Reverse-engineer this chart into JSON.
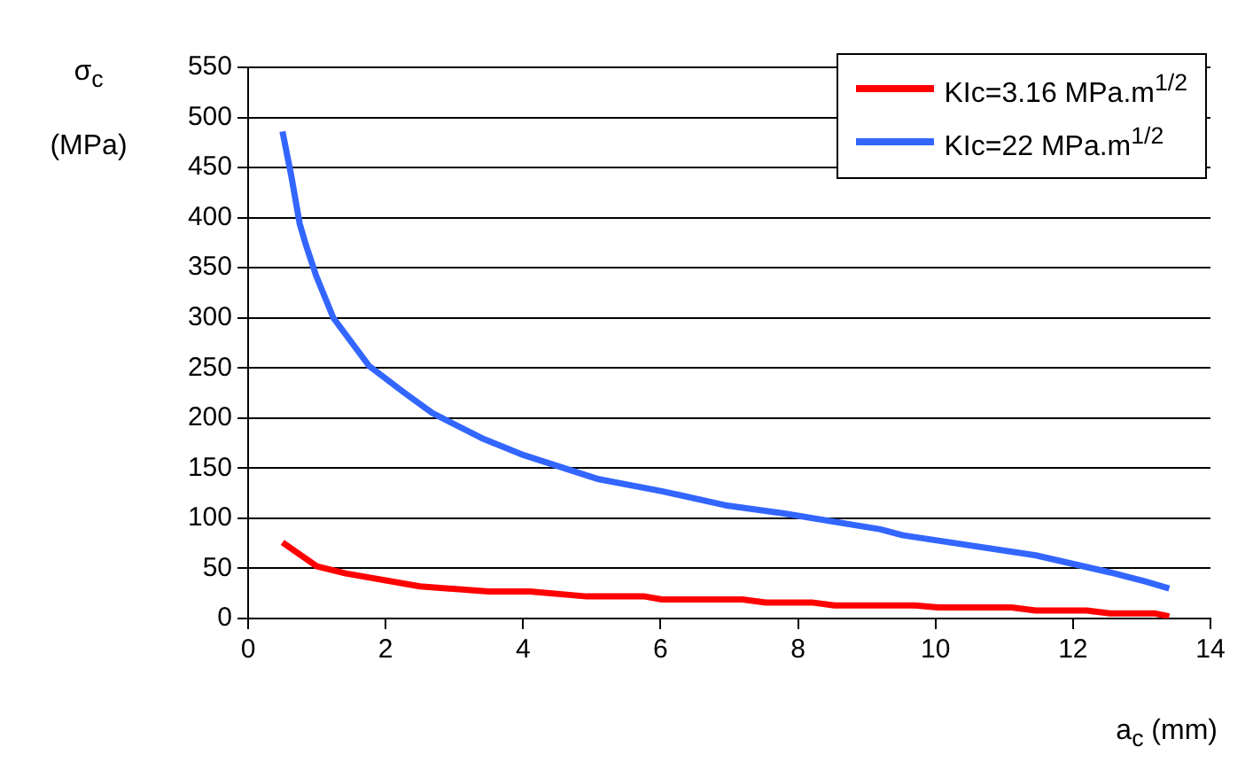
{
  "chart_data": {
    "type": "line",
    "xlabel": "a$_{c}$ (mm)",
    "ylabel": "σ$_{c}$ (MPa)",
    "xlim": [
      0,
      14
    ],
    "xticks": [
      0,
      2,
      4,
      6,
      8,
      10,
      12,
      14
    ],
    "ylim": [
      0,
      550
    ],
    "yticks": [
      0,
      50,
      100,
      150,
      200,
      250,
      300,
      350,
      400,
      450,
      500,
      550
    ],
    "grid": "y",
    "legend": "top right",
    "marker": "none",
    "line_style": "solid",
    "series": [
      {
        "name": "KIc=3.16 MPa.m$^{1/2}$",
        "color": "#ff0000",
        "x": [
          0.5,
          1.0,
          1.42,
          2.5,
          3.5,
          4.1,
          4.93,
          5.77,
          6.02,
          7.19,
          7.53,
          8.2,
          8.53,
          9.7,
          10.04,
          11.1,
          11.46,
          12.2,
          12.54,
          13.2,
          13.4
        ],
        "values": [
          76,
          52,
          45,
          32,
          27,
          27,
          22,
          22,
          19,
          19,
          16,
          16,
          13,
          13,
          11,
          11,
          8,
          8,
          5,
          5,
          2
        ]
      },
      {
        "name": "KIc=22 MPa.m$^{1/2}$",
        "color": "#3366ff",
        "x": [
          0.5,
          0.63,
          0.75,
          0.84,
          0.99,
          1.24,
          1.76,
          2.26,
          2.68,
          3.43,
          4.01,
          5.1,
          6.02,
          6.94,
          7.78,
          9.2,
          9.53,
          11.46,
          12.54,
          13.05,
          13.4
        ],
        "values": [
          486,
          441,
          394,
          373,
          342,
          300,
          252,
          226,
          205,
          179,
          163,
          139,
          127,
          113,
          105,
          89,
          83,
          63,
          46,
          37,
          30
        ]
      }
    ]
  }
}
